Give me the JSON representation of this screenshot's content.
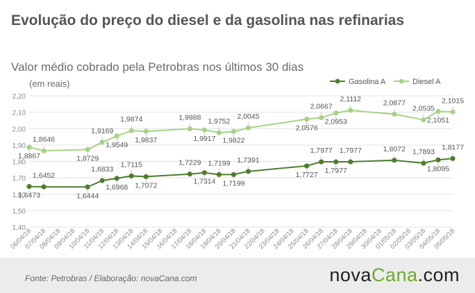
{
  "header": {
    "title": "Evolução do preço do diesel e da gasolina nas refinarias",
    "subtitle": "Valor médio cobrado pela Petrobras nos últimos 30 dias",
    "units": "(em reais)"
  },
  "footer": {
    "source": "Fonte:  Petrobras  / Elaboração:  novaCana.com",
    "logo_main": "nova",
    "logo_mid": "Cana",
    "logo_tld": ".com"
  },
  "colors": {
    "gasolina": "#4f7d2e",
    "diesel": "#a6d285",
    "grid": "#e3e3e3",
    "axis_text": "#8a8a8a",
    "label_text": "#555555",
    "footer_bg": "#ececec",
    "logo_accent": "#6cab2c"
  },
  "chart_data": {
    "type": "line",
    "y_ticks": [
      "1,40",
      "1,50",
      "1,60",
      "1,70",
      "1,80",
      "1,90",
      "2,00",
      "2,10",
      "2,20"
    ],
    "ylim": [
      1.4,
      2.2
    ],
    "grid": true,
    "legend_position": "top-right",
    "categories": [
      "06/04/18",
      "07/04/18",
      "08/04/18",
      "09/04/18",
      "10/04/18",
      "11/04/18",
      "12/04/18",
      "13/04/18",
      "14/04/18",
      "15/04/18",
      "16/04/18",
      "17/04/18",
      "18/04/18",
      "19/04/18",
      "20/04/18",
      "21/04/18",
      "22/04/18",
      "23/04/18",
      "24/04/18",
      "25/04/18",
      "26/04/18",
      "27/04/18",
      "28/04/18",
      "29/04/18",
      "30/04/18",
      "01/05/18",
      "02/05/18",
      "03/05/18",
      "04/05/18",
      "05/05/18"
    ],
    "series": [
      {
        "name": "Gasolina A",
        "key": "gasolina",
        "points": [
          {
            "x": "06/04/18",
            "y": 1.6473,
            "label": "1,6473",
            "pos": "below"
          },
          {
            "x": "07/04/18",
            "y": 1.6452,
            "label": "1,6452",
            "pos": "above"
          },
          {
            "x": "10/04/18",
            "y": 1.6444,
            "label": "1,6444",
            "pos": "below"
          },
          {
            "x": "11/04/18",
            "y": 1.6833,
            "label": "1,6833",
            "pos": "above"
          },
          {
            "x": "12/04/18",
            "y": 1.6968,
            "label": "1,6968",
            "pos": "below"
          },
          {
            "x": "13/04/18",
            "y": 1.7115,
            "label": "1,7115",
            "pos": "above"
          },
          {
            "x": "14/04/18",
            "y": 1.7072,
            "label": "1,7072",
            "pos": "below"
          },
          {
            "x": "17/04/18",
            "y": 1.7229,
            "label": "1,7229",
            "pos": "above"
          },
          {
            "x": "18/04/18",
            "y": 1.7314,
            "label": "1,7314",
            "pos": "below"
          },
          {
            "x": "19/04/18",
            "y": 1.7199,
            "label": "1,7199",
            "pos": "above"
          },
          {
            "x": "20/04/18",
            "y": 1.7199,
            "label": "1,7199",
            "pos": "below"
          },
          {
            "x": "21/04/18",
            "y": 1.7391,
            "label": "1,7391",
            "pos": "above"
          },
          {
            "x": "25/04/18",
            "y": 1.7727,
            "label": "1,7727",
            "pos": "below"
          },
          {
            "x": "26/04/18",
            "y": 1.7977,
            "label": "1,7977",
            "pos": "above"
          },
          {
            "x": "27/04/18",
            "y": 1.7977,
            "label": "1,7977",
            "pos": "below"
          },
          {
            "x": "28/04/18",
            "y": 1.7977,
            "label": "1,7977",
            "pos": "above"
          },
          {
            "x": "01/05/18",
            "y": 1.8072,
            "label": "1,8072",
            "pos": "above"
          },
          {
            "x": "03/05/18",
            "y": 1.7893,
            "label": "1,7893",
            "pos": "above"
          },
          {
            "x": "04/05/18",
            "y": 1.8095,
            "label": "1,8095",
            "pos": "below"
          },
          {
            "x": "05/05/18",
            "y": 1.8177,
            "label": "1,8177",
            "pos": "above"
          }
        ]
      },
      {
        "name": "Diesel A",
        "key": "diesel",
        "points": [
          {
            "x": "06/04/18",
            "y": 1.8867,
            "label": "1,8867",
            "pos": "below"
          },
          {
            "x": "07/04/18",
            "y": 1.8646,
            "label": "1,8646",
            "pos": "above"
          },
          {
            "x": "10/04/18",
            "y": 1.8729,
            "label": "1,8729",
            "pos": "below"
          },
          {
            "x": "11/04/18",
            "y": 1.9169,
            "label": "1,9169",
            "pos": "above"
          },
          {
            "x": "12/04/18",
            "y": 1.9549,
            "label": "1,9549",
            "pos": "below"
          },
          {
            "x": "13/04/18",
            "y": 1.9874,
            "label": "1,9874",
            "pos": "above"
          },
          {
            "x": "14/04/18",
            "y": 1.9837,
            "label": "1,9837",
            "pos": "below"
          },
          {
            "x": "17/04/18",
            "y": 1.9988,
            "label": "1,9988",
            "pos": "above"
          },
          {
            "x": "18/04/18",
            "y": 1.9917,
            "label": "1,9917",
            "pos": "below"
          },
          {
            "x": "19/04/18",
            "y": 1.9752,
            "label": "1,9752",
            "pos": "above"
          },
          {
            "x": "20/04/18",
            "y": 1.9822,
            "label": "1,9822",
            "pos": "below"
          },
          {
            "x": "21/04/18",
            "y": 2.0045,
            "label": "2,0045",
            "pos": "above"
          },
          {
            "x": "25/04/18",
            "y": 2.0576,
            "label": "2,0576",
            "pos": "below"
          },
          {
            "x": "26/04/18",
            "y": 2.0667,
            "label": "2,0667",
            "pos": "above"
          },
          {
            "x": "27/04/18",
            "y": 2.0953,
            "label": "2,0953",
            "pos": "below"
          },
          {
            "x": "28/04/18",
            "y": 2.1112,
            "label": "2,1112",
            "pos": "above"
          },
          {
            "x": "01/05/18",
            "y": 2.0877,
            "label": "2,0877",
            "pos": "above"
          },
          {
            "x": "03/05/18",
            "y": 2.0535,
            "label": "2,0535",
            "pos": "above"
          },
          {
            "x": "04/05/18",
            "y": 2.1051,
            "label": "2,1051",
            "pos": "below"
          },
          {
            "x": "05/05/18",
            "y": 2.1015,
            "label": "2,1015",
            "pos": "above"
          }
        ]
      }
    ]
  }
}
